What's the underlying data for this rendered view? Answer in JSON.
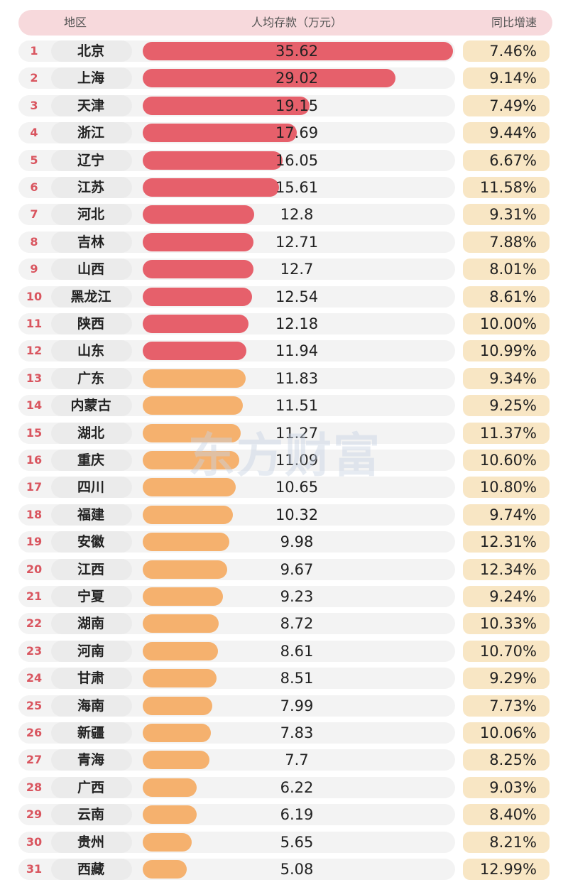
{
  "header": {
    "col_region": "地区",
    "col_deposit": "人均存款（万元）",
    "col_growth": "同比增速"
  },
  "watermark": "东方财富",
  "colors": {
    "top_bar": "#e6606b",
    "other_bar": "#f5b16e"
  },
  "chart_data": {
    "type": "bar",
    "orientation": "horizontal",
    "title": "",
    "xlabel": "",
    "ylabel": "",
    "xlim": [
      0,
      35.62
    ],
    "categories": [
      "北京",
      "上海",
      "天津",
      "浙江",
      "辽宁",
      "江苏",
      "河北",
      "吉林",
      "山西",
      "黑龙江",
      "陕西",
      "山东",
      "广东",
      "内蒙古",
      "湖北",
      "重庆",
      "四川",
      "福建",
      "安徽",
      "江西",
      "宁夏",
      "湖南",
      "河南",
      "甘肃",
      "海南",
      "新疆",
      "青海",
      "广西",
      "云南",
      "贵州",
      "西藏"
    ],
    "ranks": [
      "1",
      "2",
      "3",
      "4",
      "5",
      "6",
      "7",
      "8",
      "9",
      "10",
      "11",
      "12",
      "13",
      "14",
      "15",
      "16",
      "17",
      "18",
      "19",
      "20",
      "21",
      "22",
      "23",
      "24",
      "25",
      "26",
      "27",
      "28",
      "29",
      "30",
      "31"
    ],
    "series": [
      {
        "values": [
          35.62,
          29.02,
          19.15,
          17.69,
          16.05,
          15.61,
          12.8,
          12.71,
          12.7,
          12.54,
          12.18,
          11.94,
          11.83,
          11.51,
          11.27,
          11.09,
          10.65,
          10.32,
          9.98,
          9.67,
          9.23,
          8.72,
          8.61,
          8.51,
          7.99,
          7.83,
          7.7,
          6.22,
          6.19,
          5.65,
          5.08
        ],
        "labels": [
          "35.62",
          "29.02",
          "19.15",
          "17.69",
          "16.05",
          "15.61",
          "12.8",
          "12.71",
          "12.7",
          "12.54",
          "12.18",
          "11.94",
          "11.83",
          "11.51",
          "11.27",
          "11.09",
          "10.65",
          "10.32",
          "9.98",
          "9.67",
          "9.23",
          "8.72",
          "8.61",
          "8.51",
          "7.99",
          "7.83",
          "7.7",
          "6.22",
          "6.19",
          "5.65",
          "5.08"
        ]
      }
    ],
    "growth": [
      "7.46%",
      "9.14%",
      "7.49%",
      "9.44%",
      "6.67%",
      "11.58%",
      "9.31%",
      "7.88%",
      "8.01%",
      "8.61%",
      "10.00%",
      "10.99%",
      "9.34%",
      "9.25%",
      "11.37%",
      "10.60%",
      "10.80%",
      "9.74%",
      "12.31%",
      "12.34%",
      "9.24%",
      "10.33%",
      "10.70%",
      "9.29%",
      "7.73%",
      "10.06%",
      "8.25%",
      "9.03%",
      "8.40%",
      "8.21%",
      "12.99%"
    ],
    "highlight_top_n": 12,
    "legend": "none",
    "grid": false
  }
}
